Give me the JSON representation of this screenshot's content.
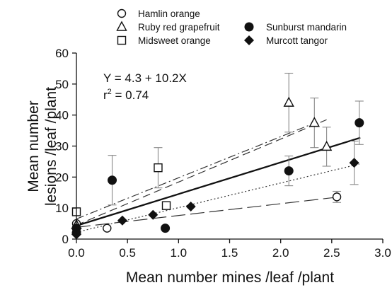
{
  "chart_data": {
    "type": "scatter",
    "xlabel": "Mean number mines /leaf /plant",
    "ylabel_lines": [
      "Mean number",
      "lesions /leaf /plant"
    ],
    "xlim": [
      0,
      3.0
    ],
    "ylim": [
      0,
      60
    ],
    "xticks": [
      "0.0",
      "0.5",
      "1.0",
      "1.5",
      "2.0",
      "2.5",
      "3.0"
    ],
    "yticks": [
      "0",
      "10",
      "20",
      "30",
      "40",
      "50",
      "60"
    ],
    "grid": false,
    "legend_position": "top",
    "annotation": {
      "equation": "Y = 4.3 + 10.2X",
      "r2_prefix": "r",
      "r2_sup": "2",
      "r2_suffix": " = 0.74"
    },
    "series": [
      {
        "name": "Hamlin orange",
        "marker": "circle-open",
        "points": [
          {
            "x": 0.0,
            "y": 5.0
          },
          {
            "x": 0.3,
            "y": 3.5
          },
          {
            "x": 2.55,
            "y": 13.6,
            "err": 1.8
          }
        ],
        "fit": {
          "type": "long-dash",
          "x": [
            0,
            2.55
          ],
          "y": [
            3.8,
            13.5
          ]
        }
      },
      {
        "name": "Ruby red grapefruit",
        "marker": "triangle-open",
        "points": [
          {
            "x": 0.0,
            "y": 4.5
          },
          {
            "x": 2.08,
            "y": 44.0,
            "err": 9.5
          },
          {
            "x": 2.33,
            "y": 37.5,
            "err": 8.0
          },
          {
            "x": 2.45,
            "y": 29.8,
            "err": 6.3
          }
        ],
        "fit": {
          "type": "dash",
          "x": [
            0,
            2.45
          ],
          "y": [
            4.5,
            38.5
          ]
        }
      },
      {
        "name": "Midsweet orange",
        "marker": "square-open",
        "points": [
          {
            "x": 0.0,
            "y": 8.8
          },
          {
            "x": 0.8,
            "y": 23.0,
            "err": 6.5
          },
          {
            "x": 0.88,
            "y": 10.8
          }
        ],
        "fit": {
          "type": "dash-dot",
          "x": [
            0,
            2.3
          ],
          "y": [
            6.5,
            37.0
          ]
        }
      },
      {
        "name": "Sunburst mandarin",
        "marker": "circle-filled",
        "points": [
          {
            "x": 0.0,
            "y": 3.5
          },
          {
            "x": 0.0,
            "y": 2.0
          },
          {
            "x": 0.35,
            "y": 19.0,
            "err": 8.0
          },
          {
            "x": 0.87,
            "y": 3.5
          },
          {
            "x": 2.08,
            "y": 22.0,
            "err": 4.8
          },
          {
            "x": 2.77,
            "y": 37.5,
            "err": 7.0
          }
        ],
        "fit": {
          "type": "dotted",
          "x": [
            0,
            2.77
          ],
          "y": [
            2.2,
            24.2
          ]
        }
      },
      {
        "name": "Murcott tangor",
        "marker": "diamond-filled",
        "points": [
          {
            "x": 0.0,
            "y": 1.5
          },
          {
            "x": 0.45,
            "y": 6.0
          },
          {
            "x": 0.75,
            "y": 7.8
          },
          {
            "x": 1.12,
            "y": 10.5
          },
          {
            "x": 2.72,
            "y": 24.6,
            "err": 7.0
          }
        ]
      }
    ],
    "regression": {
      "type": "solid",
      "x": [
        0,
        2.78
      ],
      "y": [
        4.3,
        32.7
      ]
    }
  }
}
